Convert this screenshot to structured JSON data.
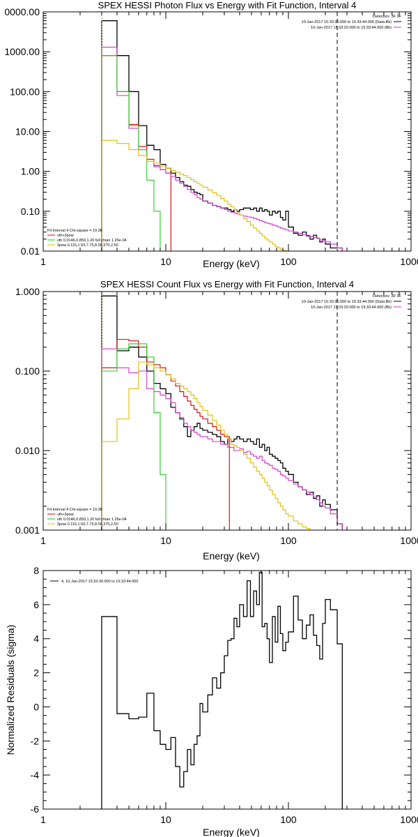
{
  "chart_data": [
    {
      "type": "line",
      "title": "SPEX HESSI Photon Flux vs Energy with Fit Function, Interval 4",
      "xlabel": "Energy (keV)",
      "ylabel": "",
      "xscale": "log",
      "yscale": "log",
      "xlim": [
        1,
        1000
      ],
      "ylim": [
        0.01,
        10000
      ],
      "xticks": [
        "1",
        "10",
        "100",
        "1000"
      ],
      "yticks": [
        "0.01",
        "0.10",
        "1.00",
        "10.00",
        "100.00",
        "1000.00",
        "0000.00"
      ],
      "legend_top_right": {
        "detectors": "Detectors: 3F 9F",
        "entries": [
          {
            "text": "10-Jan-2017 15:33:30.000 to 15:33:44.000 (Data-Bk)",
            "color": "#000000"
          },
          {
            "text": "10-Jan-2017 15:33:20.000 to 15:33:44.000 (Bk)",
            "color": "#cc33cc"
          }
        ]
      },
      "legend_bottom_left": {
        "header": "Fit Interval  4    Chi-square = 19.38",
        "entries": [
          {
            "text": "vth+3pow",
            "color": "#cc0000"
          },
          {
            "text": "vth 0.0146,0.859,1.20  full chian 1.26e-04",
            "color": "#00cc00"
          },
          {
            "text": "3pow 0.115,1.50,7.75,8.00,370,2.50",
            "color": "#ddbb00"
          }
        ]
      },
      "vlines": [
        {
          "x": 3,
          "style": "dotted",
          "color": "#dd8800"
        },
        {
          "x": 250,
          "style": "dashed",
          "color": "#000000"
        }
      ],
      "series": [
        {
          "color": "#000000",
          "x": [
            3,
            4,
            5,
            6,
            7,
            8,
            9,
            10,
            11,
            12,
            13,
            14,
            15,
            16,
            17,
            18,
            19,
            20,
            22,
            24,
            26,
            28,
            30,
            32,
            34,
            36,
            38,
            40,
            43,
            46,
            49,
            52,
            55,
            58,
            61,
            64,
            67,
            70,
            74,
            78,
            82,
            86,
            90,
            95,
            100,
            110,
            120,
            130,
            140,
            150,
            160,
            170,
            180,
            190,
            200,
            220,
            250
          ],
          "y": [
            6000,
            800,
            100,
            14,
            4.5,
            3.5,
            1.5,
            1.2,
            0.9,
            0.7,
            0.55,
            0.45,
            0.42,
            0.35,
            0.3,
            0.28,
            0.26,
            0.18,
            0.16,
            0.14,
            0.13,
            0.12,
            0.12,
            0.11,
            0.1,
            0.11,
            0.1,
            0.11,
            0.12,
            0.12,
            0.11,
            0.12,
            0.1,
            0.12,
            0.1,
            0.11,
            0.1,
            0.08,
            0.1,
            0.09,
            0.1,
            0.07,
            0.06,
            0.1,
            0.04,
            0.028,
            0.025,
            0.03,
            0.024,
            0.02,
            0.025,
            0.021,
            0.017,
            0.02,
            0.015,
            0.012,
            0.012
          ]
        },
        {
          "color": "#cc0000",
          "x": [
            3,
            4,
            5,
            6,
            7,
            8,
            9,
            10
          ],
          "y": [
            800,
            100,
            15,
            4.2,
            2.0,
            1.4,
            1.1,
            0.9
          ]
        },
        {
          "color": "#cc33cc",
          "x": [
            3,
            4,
            5,
            6,
            7,
            8,
            9,
            10,
            11,
            12,
            13,
            14,
            15,
            16,
            17,
            18,
            19,
            20,
            22,
            24,
            26,
            28,
            30,
            32,
            34,
            36,
            38,
            40,
            43,
            46,
            49,
            52,
            55,
            58,
            61,
            64,
            67,
            70,
            74,
            78,
            82,
            86,
            90,
            95,
            100,
            110,
            120,
            130,
            140,
            150,
            160,
            170,
            180,
            190,
            200,
            220,
            250
          ],
          "y": [
            1300,
            80,
            12,
            3.5,
            1.8,
            1.3,
            1.1,
            0.9,
            0.75,
            0.6,
            0.5,
            0.42,
            0.35,
            0.3,
            0.26,
            0.22,
            0.2,
            0.18,
            0.16,
            0.14,
            0.13,
            0.12,
            0.11,
            0.1,
            0.095,
            0.09,
            0.085,
            0.08,
            0.075,
            0.072,
            0.07,
            0.066,
            0.062,
            0.058,
            0.055,
            0.052,
            0.05,
            0.048,
            0.045,
            0.043,
            0.04,
            0.038,
            0.036,
            0.034,
            0.032,
            0.03,
            0.028,
            0.026,
            0.025,
            0.023,
            0.022,
            0.021,
            0.019,
            0.018,
            0.017,
            0.015,
            0.012
          ]
        },
        {
          "color": "#22cc22",
          "x": [
            3,
            4,
            5,
            6,
            7,
            8,
            9
          ],
          "y": [
            800,
            100,
            14,
            3.5,
            0.6,
            0.1,
            0.01
          ]
        },
        {
          "color": "#ddbb00",
          "x": [
            3,
            4,
            5,
            6,
            7,
            8,
            9,
            10,
            11,
            12,
            13,
            14,
            15,
            16,
            17,
            18,
            19,
            20,
            22,
            24,
            26,
            28,
            30,
            32,
            34,
            36,
            38,
            40,
            43,
            46,
            49,
            52,
            55,
            58,
            61,
            64,
            67,
            70,
            74,
            78,
            82,
            86,
            90,
            95,
            100
          ],
          "y": [
            6,
            5,
            3.5,
            2.5,
            1.8,
            1.6,
            1.35,
            1.2,
            1.05,
            0.95,
            0.85,
            0.78,
            0.7,
            0.62,
            0.55,
            0.5,
            0.45,
            0.4,
            0.34,
            0.29,
            0.25,
            0.21,
            0.18,
            0.15,
            0.13,
            0.11,
            0.095,
            0.08,
            0.065,
            0.055,
            0.045,
            0.038,
            0.032,
            0.028,
            0.024,
            0.021,
            0.019,
            0.017,
            0.015,
            0.013,
            0.012,
            0.011,
            0.0105,
            0.0101,
            0.0098
          ]
        }
      ]
    },
    {
      "type": "line",
      "title": "SPEX HESSI Count Flux vs Energy with Fit Function, Interval 4",
      "xlabel": "Energy (keV)",
      "ylabel": "",
      "xscale": "log",
      "yscale": "log",
      "xlim": [
        1,
        1000
      ],
      "ylim": [
        0.001,
        1
      ],
      "xticks": [
        "1",
        "10",
        "100",
        "1000"
      ],
      "yticks": [
        "0.001",
        "0.010",
        "0.100",
        "1.000"
      ],
      "legend_top_right": {
        "detectors": "Detectors: 3F 9F",
        "entries": [
          {
            "text": "10-Jan-2017 15:33:30.000 to 15:33:44.000 (Data-Bk)",
            "color": "#000000"
          },
          {
            "text": "10-Jan-2017 15:33:20.000 to 15:33:44.000 (Bk)",
            "color": "#cc33cc"
          }
        ]
      },
      "legend_bottom_left": {
        "header": "Fit Interval  4    Chi-square = 19.38",
        "entries": [
          {
            "text": "vth+3pow",
            "color": "#cc0000"
          },
          {
            "text": "vth 0.0146,0.859,1.20  full chian 1.26e-04",
            "color": "#00cc00"
          },
          {
            "text": "3pow 0.115,1.50,7.75,8.00,370,2.50",
            "color": "#ddbb00"
          }
        ]
      },
      "vlines": [
        {
          "x": 3,
          "style": "dotted",
          "color": "#dd8800"
        },
        {
          "x": 250,
          "style": "dashed",
          "color": "#000000"
        }
      ],
      "series": [
        {
          "color": "#000000",
          "x": [
            3,
            4,
            5,
            6,
            7,
            8,
            9,
            10,
            11,
            12,
            13,
            14,
            15,
            16,
            17,
            18,
            19,
            20,
            22,
            24,
            26,
            28,
            30,
            32,
            34,
            36,
            38,
            40,
            43,
            46,
            49,
            52,
            55,
            58,
            61,
            64,
            67,
            70,
            74,
            78,
            82,
            86,
            90,
            95,
            100,
            110,
            120,
            130,
            140,
            150,
            160,
            170,
            180,
            190,
            200,
            220,
            250
          ],
          "y": [
            0.88,
            0.18,
            0.2,
            0.15,
            0.1,
            0.07,
            0.06,
            0.052,
            0.035,
            0.03,
            0.025,
            0.02,
            0.015,
            0.018,
            0.02,
            0.022,
            0.019,
            0.018,
            0.017,
            0.016,
            0.015,
            0.013,
            0.012,
            0.014,
            0.013,
            0.014,
            0.015,
            0.014,
            0.013,
            0.014,
            0.013,
            0.012,
            0.014,
            0.011,
            0.012,
            0.01,
            0.011,
            0.009,
            0.0085,
            0.008,
            0.0075,
            0.007,
            0.006,
            0.0055,
            0.005,
            0.004,
            0.0035,
            0.0032,
            0.0028,
            0.003,
            0.0025,
            0.0027,
            0.002,
            0.0024,
            0.0021,
            0.0018,
            0.0012
          ]
        },
        {
          "color": "#cc0000",
          "x": [
            3,
            4,
            5,
            6,
            7,
            8,
            9,
            10,
            11,
            12,
            13,
            14,
            15,
            16,
            17,
            18,
            19,
            20,
            22,
            24,
            26,
            28,
            30
          ],
          "y": [
            0.11,
            0.25,
            0.24,
            0.2,
            0.13,
            0.12,
            0.11,
            0.09,
            0.075,
            0.065,
            0.055,
            0.048,
            0.042,
            0.037,
            0.033,
            0.03,
            0.027,
            0.025,
            0.022,
            0.02,
            0.018,
            0.016,
            0.015
          ]
        },
        {
          "color": "#cc33cc",
          "x": [
            3,
            4,
            5,
            6,
            7,
            8,
            9,
            10,
            11,
            12,
            13,
            14,
            15,
            16,
            17,
            18,
            19,
            20,
            22,
            24,
            26,
            28,
            30,
            32,
            34,
            36,
            38,
            40,
            43,
            46,
            49,
            52,
            55,
            58,
            61,
            64,
            67,
            70,
            74,
            78,
            82,
            86,
            90,
            95,
            100,
            110,
            120,
            130,
            140,
            150,
            160,
            170,
            180,
            190,
            200,
            220,
            250
          ],
          "y": [
            0.19,
            0.11,
            0.095,
            0.1,
            0.06,
            0.055,
            0.05,
            0.045,
            0.04,
            0.03,
            0.026,
            0.022,
            0.02,
            0.018,
            0.017,
            0.016,
            0.015,
            0.015,
            0.014,
            0.013,
            0.013,
            0.012,
            0.012,
            0.011,
            0.011,
            0.01,
            0.01,
            0.0105,
            0.0095,
            0.0098,
            0.009,
            0.0085,
            0.008,
            0.0085,
            0.0075,
            0.007,
            0.0068,
            0.0065,
            0.006,
            0.0058,
            0.0055,
            0.005,
            0.0048,
            0.0045,
            0.0042,
            0.0038,
            0.0035,
            0.0032,
            0.003,
            0.0028,
            0.0026,
            0.0024,
            0.0022,
            0.002,
            0.0019,
            0.0016,
            0.0012
          ]
        },
        {
          "color": "#22cc22",
          "x": [
            3,
            4,
            5,
            6,
            7,
            8,
            9,
            10
          ],
          "y": [
            0.1,
            0.19,
            0.22,
            0.22,
            0.15,
            0.03,
            0.005,
            0.001
          ]
        },
        {
          "color": "#ddbb00",
          "x": [
            3,
            4,
            5,
            6,
            7,
            8,
            9,
            10,
            11,
            12,
            13,
            14,
            15,
            16,
            17,
            18,
            19,
            20,
            22,
            24,
            26,
            28,
            30,
            32,
            34,
            36,
            38,
            40,
            43,
            46,
            49,
            52,
            55,
            58,
            61,
            64,
            67,
            70,
            74,
            78,
            82,
            86,
            90,
            95,
            100,
            110,
            120,
            130,
            140,
            150,
            160
          ],
          "y": [
            0.013,
            0.025,
            0.06,
            0.13,
            0.12,
            0.11,
            0.1,
            0.09,
            0.08,
            0.07,
            0.065,
            0.06,
            0.055,
            0.05,
            0.045,
            0.04,
            0.036,
            0.032,
            0.028,
            0.024,
            0.021,
            0.018,
            0.016,
            0.014,
            0.012,
            0.0115,
            0.011,
            0.01,
            0.009,
            0.008,
            0.007,
            0.0062,
            0.0055,
            0.005,
            0.0045,
            0.004,
            0.0036,
            0.0032,
            0.0028,
            0.0025,
            0.0022,
            0.002,
            0.0018,
            0.0016,
            0.0015,
            0.0013,
            0.0012,
            0.0011,
            0.00105,
            0.001,
            0.001
          ]
        }
      ]
    },
    {
      "type": "line",
      "title": "",
      "xlabel": "Energy (keV)",
      "ylabel": "Normalized Residuals (sigma)",
      "xscale": "log",
      "yscale": "linear",
      "xlim": [
        1,
        1000
      ],
      "ylim": [
        -6,
        8
      ],
      "xticks": [
        "1",
        "10",
        "100",
        "1000"
      ],
      "yticks": [
        "-6",
        "-4",
        "-2",
        "0",
        "2",
        "4",
        "6",
        "8"
      ],
      "legend_top_left": {
        "entries": [
          {
            "text": "4, 10-Jan-2017 15:33:30.000 to 15:33:44.000",
            "color": "#000000"
          }
        ]
      },
      "series": [
        {
          "color": "#000000",
          "x": [
            3,
            4,
            5,
            6,
            7,
            8,
            9,
            10,
            11,
            12,
            13,
            14,
            15,
            16,
            17,
            18,
            19,
            20,
            22,
            24,
            26,
            28,
            30,
            32,
            34,
            36,
            38,
            40,
            43,
            46,
            49,
            52,
            55,
            58,
            61,
            64,
            67,
            70,
            74,
            78,
            82,
            86,
            90,
            95,
            100,
            110,
            120,
            130,
            140,
            150,
            160,
            170,
            180,
            190,
            200,
            220,
            250
          ],
          "y": [
            5.3,
            -0.4,
            -0.7,
            -0.6,
            0.8,
            -1.4,
            -2.2,
            -2.5,
            -1.8,
            -3.5,
            -4.7,
            -3.8,
            -2.5,
            -3.4,
            -2.2,
            -1.7,
            0.2,
            -0.3,
            0.7,
            1.7,
            1.1,
            2.0,
            3.0,
            3.9,
            4.0,
            5.2,
            4.7,
            6.0,
            5.3,
            7.4,
            5.3,
            6.8,
            6.0,
            7.9,
            4.7,
            4.9,
            4.0,
            2.6,
            5.3,
            3.8,
            5.9,
            4.3,
            3.3,
            3.8,
            4.4,
            6.5,
            5.1,
            4.0,
            4.8,
            5.4,
            4.2,
            3.6,
            2.8,
            4.9,
            6.3,
            5.7,
            3.7
          ]
        }
      ]
    }
  ]
}
